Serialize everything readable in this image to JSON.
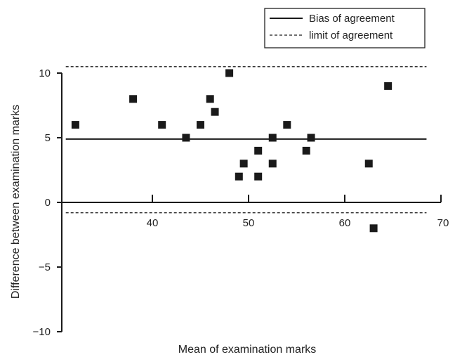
{
  "chart_data": {
    "type": "scatter",
    "title": "",
    "xlabel": "Mean of examination marks",
    "ylabel": "Difference between examination marks",
    "xlim": [
      30,
      70
    ],
    "ylim": [
      -10,
      10
    ],
    "x_ticks": [
      40,
      50,
      60,
      70
    ],
    "y_ticks": [
      -10,
      -5,
      0,
      5,
      10
    ],
    "grid": false,
    "legend_position": "top-right",
    "marker_color": "#1a1a1a",
    "line_color": "#1a1a1a",
    "points": [
      {
        "x": 32,
        "y": 6
      },
      {
        "x": 38,
        "y": 8
      },
      {
        "x": 41,
        "y": 6
      },
      {
        "x": 43.5,
        "y": 5
      },
      {
        "x": 45,
        "y": 6
      },
      {
        "x": 46,
        "y": 8
      },
      {
        "x": 46.5,
        "y": 7
      },
      {
        "x": 48,
        "y": 10
      },
      {
        "x": 49,
        "y": 2
      },
      {
        "x": 49.5,
        "y": 3
      },
      {
        "x": 51,
        "y": 2
      },
      {
        "x": 51,
        "y": 4
      },
      {
        "x": 52.5,
        "y": 5
      },
      {
        "x": 52.5,
        "y": 3
      },
      {
        "x": 54,
        "y": 6
      },
      {
        "x": 56,
        "y": 4
      },
      {
        "x": 56.5,
        "y": 5
      },
      {
        "x": 62.5,
        "y": 3
      },
      {
        "x": 63,
        "y": -2
      },
      {
        "x": 64.5,
        "y": 9
      }
    ],
    "reference_lines": [
      {
        "name": "Bias of agreement",
        "value": 4.9,
        "style": "solid"
      },
      {
        "name": "limit of agreement",
        "value": 10.5,
        "style": "dashed"
      },
      {
        "name": "limit of agreement",
        "value": -0.8,
        "style": "dashed"
      }
    ],
    "legend": [
      {
        "label": "Bias of agreement",
        "style": "solid"
      },
      {
        "label": "limit of agreement",
        "style": "dashed"
      }
    ]
  }
}
